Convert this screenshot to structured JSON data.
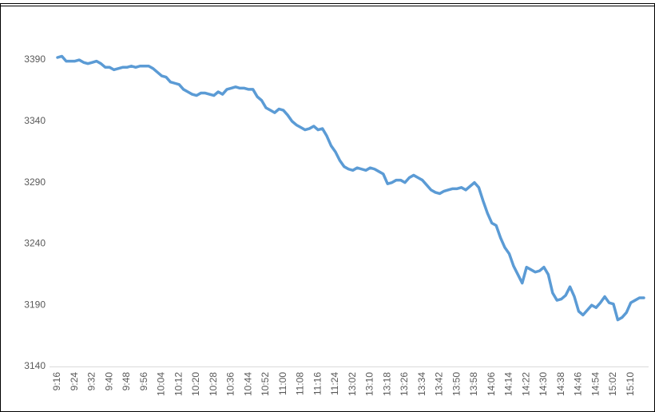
{
  "chart_data": {
    "type": "line",
    "categories": [
      "9:16",
      null,
      null,
      null,
      "9:24",
      null,
      null,
      null,
      "9:32",
      null,
      null,
      null,
      "9:40",
      null,
      null,
      null,
      "9:48",
      null,
      null,
      null,
      "9:56",
      null,
      null,
      null,
      "10:04",
      null,
      null,
      null,
      "10:12",
      null,
      null,
      null,
      "10:20",
      null,
      null,
      null,
      "10:28",
      null,
      null,
      null,
      "10:36",
      null,
      null,
      null,
      "10:44",
      null,
      null,
      null,
      "10:52",
      null,
      null,
      null,
      "11:00",
      null,
      null,
      null,
      "11:08",
      null,
      null,
      null,
      "11:16",
      null,
      null,
      null,
      "11:24",
      null,
      null,
      null,
      "13:02",
      null,
      null,
      null,
      "13:10",
      null,
      null,
      null,
      "13:18",
      null,
      null,
      null,
      "13:26",
      null,
      null,
      null,
      "13:34",
      null,
      null,
      null,
      "13:42",
      null,
      null,
      null,
      "13:50",
      null,
      null,
      null,
      "13:58",
      null,
      null,
      null,
      "14:06",
      null,
      null,
      null,
      "14:14",
      null,
      null,
      null,
      "14:22",
      null,
      null,
      null,
      "14:30",
      null,
      null,
      null,
      "14:38",
      null,
      null,
      null,
      "14:46",
      null,
      null,
      null,
      "14:54",
      null,
      null,
      null,
      "15:02",
      null,
      null,
      null,
      "15:10",
      null,
      null,
      null
    ],
    "values": [
      3392,
      3393,
      3389,
      3389,
      3389,
      3390,
      3388,
      3387,
      3388,
      3389,
      3387,
      3384,
      3384,
      3382,
      3383,
      3384,
      3384,
      3385,
      3384,
      3385,
      3385,
      3385,
      3383,
      3380,
      3377,
      3376,
      3372,
      3371,
      3370,
      3366,
      3364,
      3362,
      3361,
      3363,
      3363,
      3362,
      3361,
      3364,
      3362,
      3366,
      3367,
      3368,
      3367,
      3367,
      3366,
      3366,
      3360,
      3357,
      3351,
      3349,
      3347,
      3350,
      3349,
      3345,
      3340,
      3337,
      3335,
      3333,
      3334,
      3336,
      3333,
      3334,
      3328,
      3320,
      3315,
      3308,
      3303,
      3301,
      3300,
      3302,
      3301,
      3300,
      3302,
      3301,
      3299,
      3297,
      3289,
      3290,
      3292,
      3292,
      3290,
      3294,
      3296,
      3294,
      3292,
      3288,
      3284,
      3282,
      3281,
      3283,
      3284,
      3285,
      3285,
      3286,
      3284,
      3287,
      3290,
      3286,
      3275,
      3265,
      3257,
      3255,
      3245,
      3237,
      3232,
      3222,
      3215,
      3208,
      3221,
      3219,
      3217,
      3218,
      3221,
      3215,
      3200,
      3194,
      3195,
      3198,
      3205,
      3197,
      3185,
      3182,
      3186,
      3190,
      3188,
      3192,
      3197,
      3192,
      3191,
      3178,
      3180,
      3184,
      3192,
      3194,
      3196,
      3196
    ],
    "color": "#5b9bd5",
    "ylim": [
      3140,
      3420
    ],
    "yticks": [
      3140,
      3190,
      3240,
      3290,
      3340,
      3390
    ],
    "grid": false
  }
}
